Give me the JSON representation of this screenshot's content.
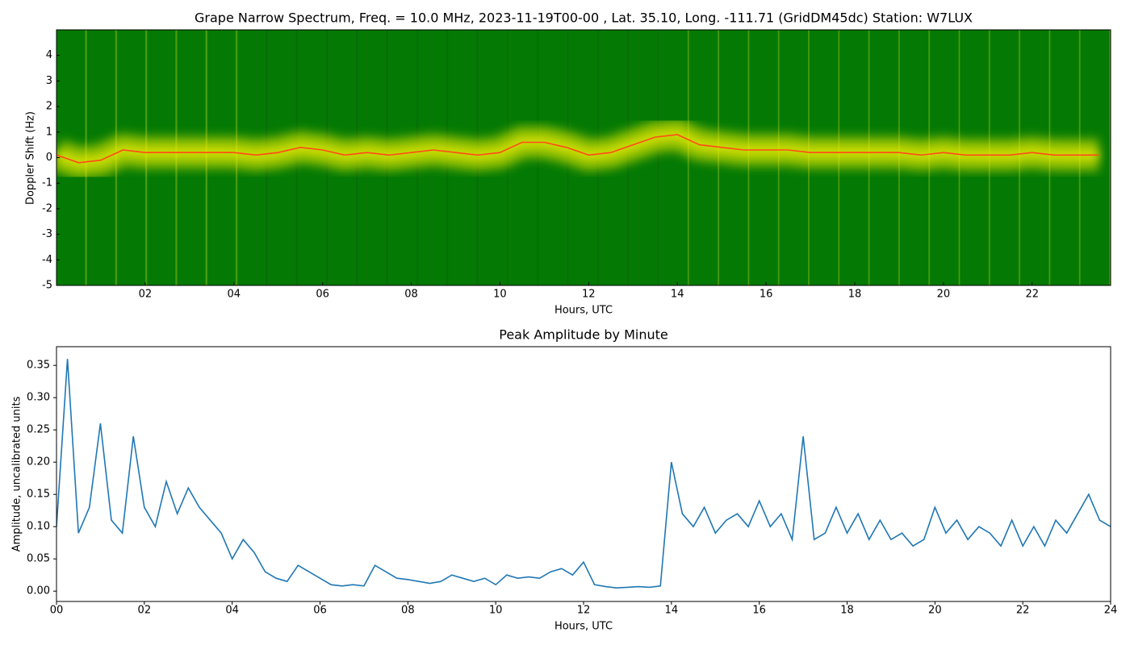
{
  "chart_data": [
    {
      "type": "spectrogram",
      "title": "Grape Narrow Spectrum, Freq. = 10.0 MHz, 2023-11-19T00-00 , Lat.  35.10, Long. -111.71 (GridDM45dc) Station: W7LUX",
      "xlabel": "Hours, UTC",
      "ylabel": "Doppler Shift (Hz)",
      "xlim": [
        0,
        23.77
      ],
      "ylim": [
        -5,
        5
      ],
      "xticks": [
        {
          "value": 2,
          "label": "02"
        },
        {
          "value": 4,
          "label": "04"
        },
        {
          "value": 6,
          "label": "06"
        },
        {
          "value": 8,
          "label": "08"
        },
        {
          "value": 10,
          "label": "10"
        },
        {
          "value": 12,
          "label": "12"
        },
        {
          "value": 14,
          "label": "14"
        },
        {
          "value": 16,
          "label": "16"
        },
        {
          "value": 18,
          "label": "18"
        },
        {
          "value": 20,
          "label": "20"
        },
        {
          "value": 22,
          "label": "22"
        }
      ],
      "yticks": [
        -5,
        -4,
        -3,
        -2,
        -1,
        0,
        1,
        2,
        3,
        4
      ],
      "background": "#047a04",
      "band_color": "#f2f000",
      "color": "#ff4a1a",
      "x": [
        0,
        0.5,
        1,
        1.5,
        2,
        2.5,
        3,
        3.5,
        4,
        4.5,
        5,
        5.5,
        6,
        6.5,
        7,
        7.5,
        8,
        8.5,
        9,
        9.5,
        10,
        10.5,
        11,
        11.5,
        12,
        12.5,
        13,
        13.5,
        14,
        14.5,
        15,
        15.5,
        16,
        16.5,
        17,
        17.5,
        18,
        18.5,
        19,
        19.5,
        20,
        20.5,
        21,
        21.5,
        22,
        22.5,
        23,
        23.5
      ],
      "values": [
        0.1,
        -0.2,
        -0.1,
        0.3,
        0.2,
        0.2,
        0.2,
        0.2,
        0.2,
        0.1,
        0.2,
        0.4,
        0.3,
        0.1,
        0.2,
        0.1,
        0.2,
        0.3,
        0.2,
        0.1,
        0.2,
        0.6,
        0.6,
        0.4,
        0.1,
        0.2,
        0.5,
        0.8,
        0.9,
        0.5,
        0.4,
        0.3,
        0.3,
        0.3,
        0.2,
        0.2,
        0.2,
        0.2,
        0.2,
        0.1,
        0.2,
        0.1,
        0.1,
        0.1,
        0.2,
        0.1,
        0.1,
        0.1
      ]
    },
    {
      "type": "line",
      "title": "Peak Amplitude by Minute",
      "xlabel": "Hours, UTC",
      "ylabel": "Amplitude, uncalibrated units",
      "xlim": [
        0,
        24
      ],
      "ylim": [
        -0.016,
        0.379
      ],
      "xticks": [
        {
          "value": 0,
          "label": "00"
        },
        {
          "value": 2,
          "label": "02"
        },
        {
          "value": 4,
          "label": "04"
        },
        {
          "value": 6,
          "label": "06"
        },
        {
          "value": 8,
          "label": "08"
        },
        {
          "value": 10,
          "label": "10"
        },
        {
          "value": 12,
          "label": "12"
        },
        {
          "value": 14,
          "label": "14"
        },
        {
          "value": 16,
          "label": "16"
        },
        {
          "value": 18,
          "label": "18"
        },
        {
          "value": 20,
          "label": "20"
        },
        {
          "value": 22,
          "label": "22"
        },
        {
          "value": 24,
          "label": "24"
        }
      ],
      "yticks": [
        {
          "value": 0,
          "label": "0.00"
        },
        0.05,
        {
          "value": 0.1,
          "label": "0.10"
        },
        0.15,
        {
          "value": 0.2,
          "label": "0.20"
        },
        0.25,
        {
          "value": 0.3,
          "label": "0.30"
        },
        0.35
      ],
      "color": "#1f77b4",
      "x": [
        0,
        0.25,
        0.5,
        0.75,
        1,
        1.25,
        1.5,
        1.75,
        2,
        2.25,
        2.5,
        2.75,
        3,
        3.25,
        3.5,
        3.75,
        4,
        4.25,
        4.5,
        4.75,
        5,
        5.25,
        5.5,
        5.75,
        6,
        6.25,
        6.5,
        6.75,
        7,
        7.25,
        7.5,
        7.75,
        8,
        8.25,
        8.5,
        8.75,
        9,
        9.25,
        9.5,
        9.75,
        10,
        10.25,
        10.5,
        10.75,
        11,
        11.25,
        11.5,
        11.75,
        12,
        12.25,
        12.5,
        12.75,
        13,
        13.25,
        13.5,
        13.75,
        14,
        14.25,
        14.5,
        14.75,
        15,
        15.25,
        15.5,
        15.75,
        16,
        16.25,
        16.5,
        16.75,
        17,
        17.25,
        17.5,
        17.75,
        18,
        18.25,
        18.5,
        18.75,
        19,
        19.25,
        19.5,
        19.75,
        20,
        20.25,
        20.5,
        20.75,
        21,
        21.25,
        21.5,
        21.75,
        22,
        22.25,
        22.5,
        22.75,
        23,
        23.25,
        23.5,
        23.75,
        24
      ],
      "values": [
        0.1,
        0.36,
        0.09,
        0.13,
        0.26,
        0.11,
        0.09,
        0.24,
        0.13,
        0.1,
        0.17,
        0.12,
        0.16,
        0.13,
        0.11,
        0.09,
        0.05,
        0.08,
        0.06,
        0.03,
        0.02,
        0.015,
        0.04,
        0.03,
        0.02,
        0.01,
        0.008,
        0.01,
        0.008,
        0.04,
        0.03,
        0.02,
        0.018,
        0.015,
        0.012,
        0.015,
        0.025,
        0.02,
        0.015,
        0.02,
        0.01,
        0.025,
        0.02,
        0.022,
        0.02,
        0.03,
        0.035,
        0.025,
        0.045,
        0.01,
        0.007,
        0.005,
        0.006,
        0.007,
        0.006,
        0.008,
        0.2,
        0.12,
        0.1,
        0.13,
        0.09,
        0.11,
        0.12,
        0.1,
        0.14,
        0.1,
        0.12,
        0.08,
        0.24,
        0.08,
        0.09,
        0.13,
        0.09,
        0.12,
        0.08,
        0.11,
        0.08,
        0.09,
        0.07,
        0.08,
        0.13,
        0.09,
        0.11,
        0.08,
        0.1,
        0.09,
        0.07,
        0.11,
        0.07,
        0.1,
        0.07,
        0.11,
        0.09,
        0.12,
        0.15,
        0.11,
        0.1
      ]
    }
  ]
}
